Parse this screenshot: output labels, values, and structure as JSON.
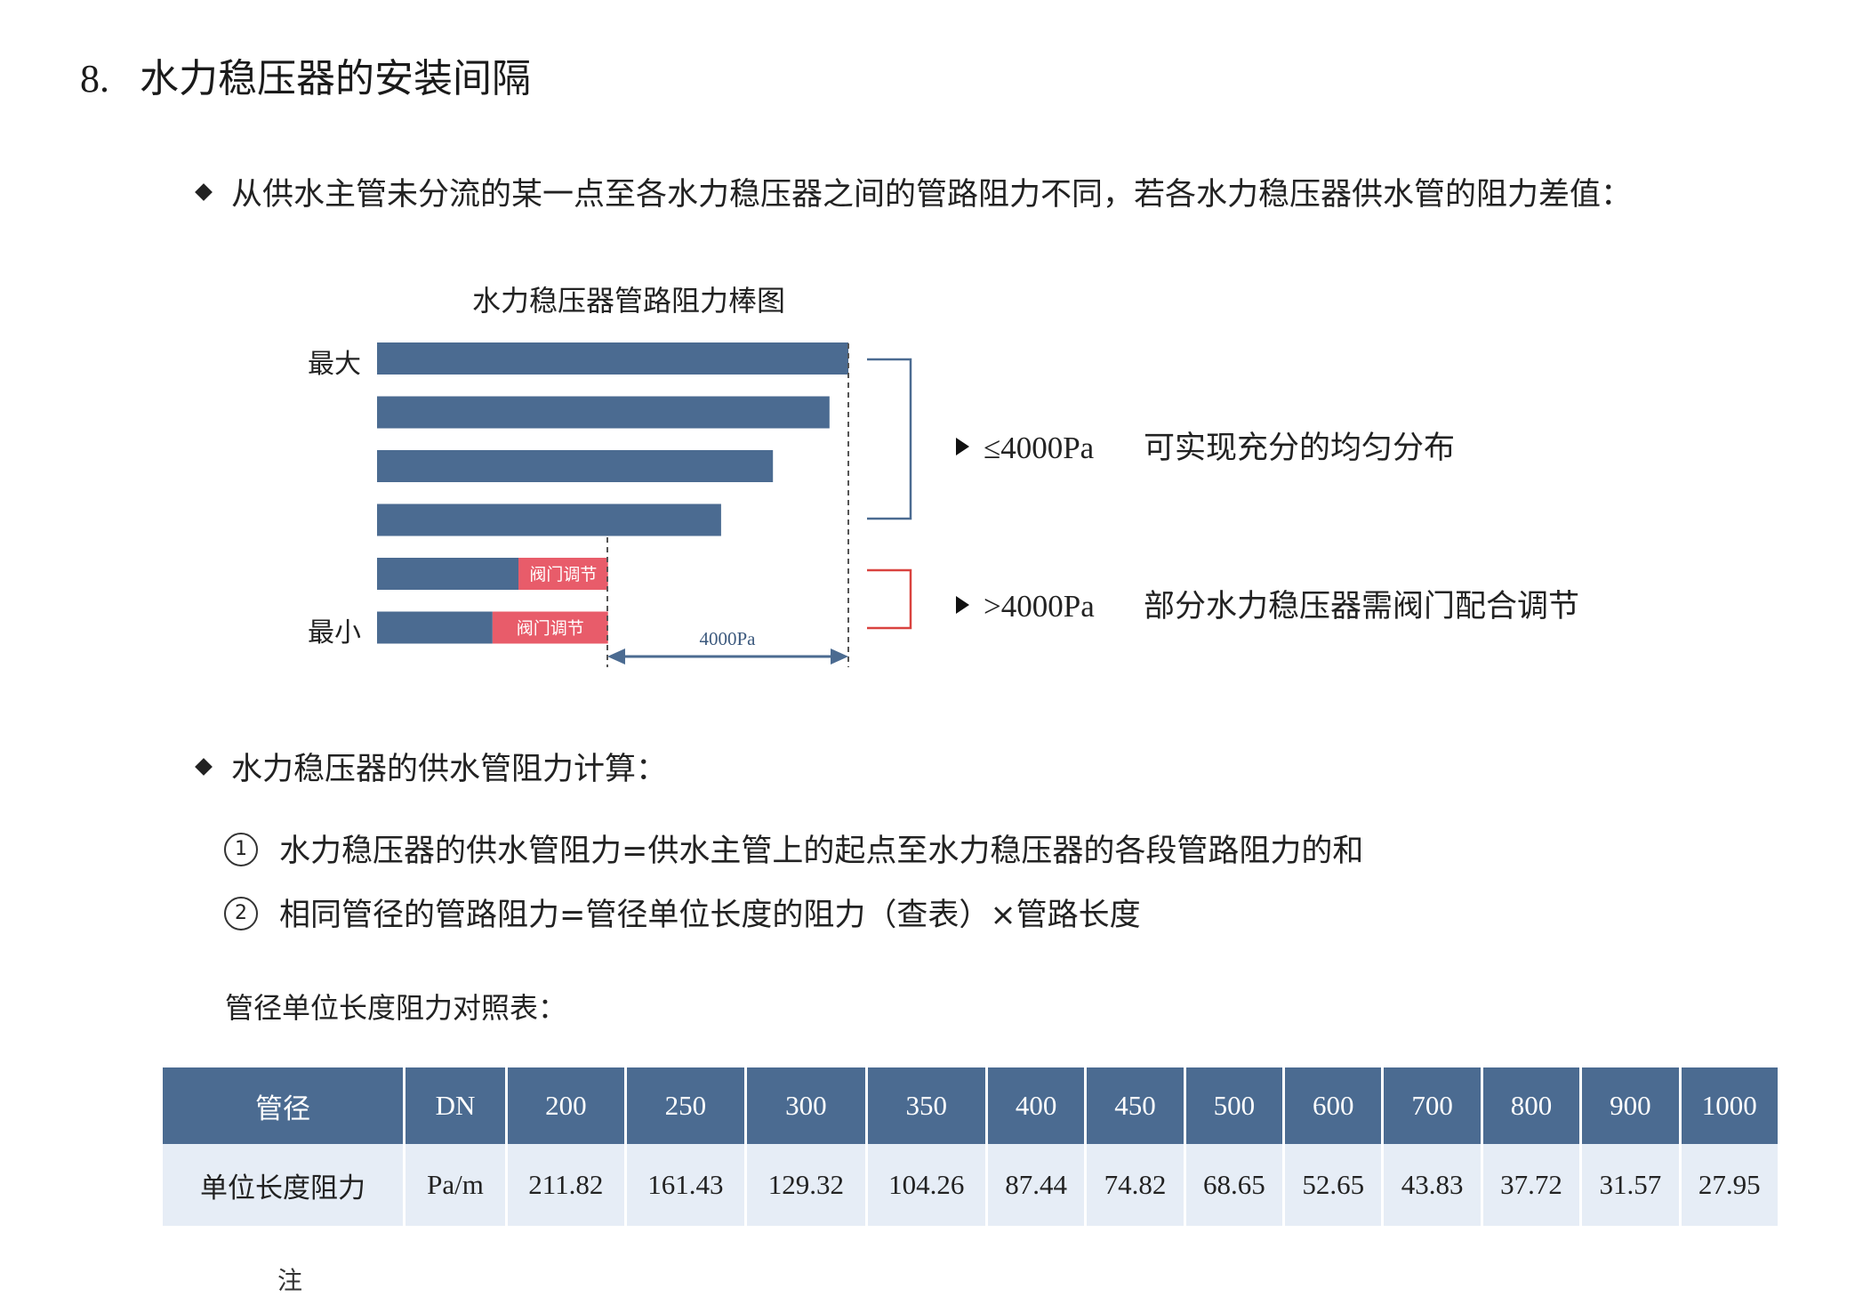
{
  "section": {
    "number": "8.",
    "title": "水力稳压器的安装间隔"
  },
  "bullet1": "从供水主管未分流的某一点至各水力稳压器之间的管路阻力不同，若各水力稳压器供水管的阻力差值：",
  "chart_data": {
    "type": "bar",
    "title": "水力稳压器管路阻力棒图",
    "top_label": "最大",
    "bottom_label": "最小",
    "bars": [
      {
        "length": 1.0,
        "valve": 0
      },
      {
        "length": 0.96,
        "valve": 0
      },
      {
        "length": 0.84,
        "valve": 0
      },
      {
        "length": 0.73,
        "valve": 0
      },
      {
        "length": 0.3,
        "valve": 0.19,
        "valve_label": "阀门调节"
      },
      {
        "length": 0.245,
        "valve": 0.245,
        "valve_label": "阀门调节"
      }
    ],
    "dimension_label": "4000Pa",
    "colors": {
      "bar": "#4b6b91",
      "valve": "#e85c6a",
      "bracket_blue": "#4b6b91",
      "bracket_red": "#d9423f"
    }
  },
  "notes": [
    {
      "value": "≤4000Pa",
      "text": "可实现充分的均匀分布"
    },
    {
      "value": ">4000Pa",
      "text": "部分水力稳压器需阀门配合调节"
    }
  ],
  "bullet2": "水力稳压器的供水管阻力计算：",
  "formulas": [
    {
      "marker": "1",
      "text": "水力稳压器的供水管阻力=供水主管上的起点至水力稳压器的各段管路阻力的和"
    },
    {
      "marker": "2",
      "text": "相同管径的管路阻力=管径单位长度的阻力（查表）×管路长度"
    }
  ],
  "table_caption": "管径单位长度阻力对照表：",
  "table": {
    "header_label": "管径",
    "header_unit": "DN",
    "sizes": [
      "200",
      "250",
      "300",
      "350",
      "400",
      "450",
      "500",
      "600",
      "700",
      "800",
      "900",
      "1000"
    ],
    "row_label": "单位长度阻力",
    "row_unit": "Pa/m",
    "values": [
      "211.82",
      "161.43",
      "129.32",
      "104.26",
      "87.44",
      "74.82",
      "68.65",
      "52.65",
      "43.83",
      "37.72",
      "31.57",
      "27.95"
    ]
  },
  "footer_fragment": "注"
}
